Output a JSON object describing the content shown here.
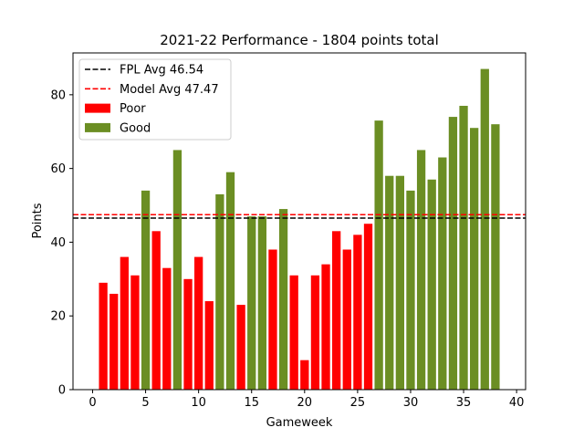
{
  "chart_data": {
    "type": "bar",
    "title": "2021-22 Performance - 1804 points total",
    "xlabel": "Gameweek",
    "ylabel": "Points",
    "xlim": [
      -1.85,
      40.85
    ],
    "ylim": [
      0,
      91.35
    ],
    "xticks": [
      0,
      5,
      10,
      15,
      20,
      25,
      30,
      35,
      40
    ],
    "yticks": [
      0,
      20,
      40,
      60,
      80
    ],
    "grid": false,
    "legend_position": "top-left",
    "reference_lines": [
      {
        "name": "FPL Avg 46.54",
        "value": 46.54,
        "color": "#000000",
        "style": "dashed"
      },
      {
        "name": "Model Avg 47.47",
        "value": 47.47,
        "color": "#ff0000",
        "style": "dashed"
      }
    ],
    "series": [
      {
        "name": "Poor",
        "color": "#ff0000"
      },
      {
        "name": "Good",
        "color": "#6b8e23"
      }
    ],
    "categories": [
      1,
      2,
      3,
      4,
      5,
      6,
      7,
      8,
      9,
      10,
      11,
      12,
      13,
      14,
      15,
      16,
      17,
      18,
      19,
      20,
      21,
      22,
      23,
      24,
      25,
      26,
      27,
      28,
      29,
      30,
      31,
      32,
      33,
      34,
      35,
      36,
      37,
      38
    ],
    "values": [
      29,
      26,
      36,
      31,
      54,
      43,
      33,
      65,
      30,
      36,
      24,
      53,
      59,
      23,
      47,
      47,
      38,
      49,
      31,
      8,
      31,
      34,
      43,
      38,
      42,
      45,
      73,
      58,
      58,
      54,
      65,
      57,
      63,
      74,
      77,
      71,
      87,
      72
    ],
    "bar_series": [
      "Poor",
      "Poor",
      "Poor",
      "Poor",
      "Good",
      "Poor",
      "Poor",
      "Good",
      "Poor",
      "Poor",
      "Poor",
      "Good",
      "Good",
      "Poor",
      "Good",
      "Good",
      "Poor",
      "Good",
      "Poor",
      "Poor",
      "Poor",
      "Poor",
      "Poor",
      "Poor",
      "Poor",
      "Poor",
      "Good",
      "Good",
      "Good",
      "Good",
      "Good",
      "Good",
      "Good",
      "Good",
      "Good",
      "Good",
      "Good",
      "Good"
    ]
  }
}
